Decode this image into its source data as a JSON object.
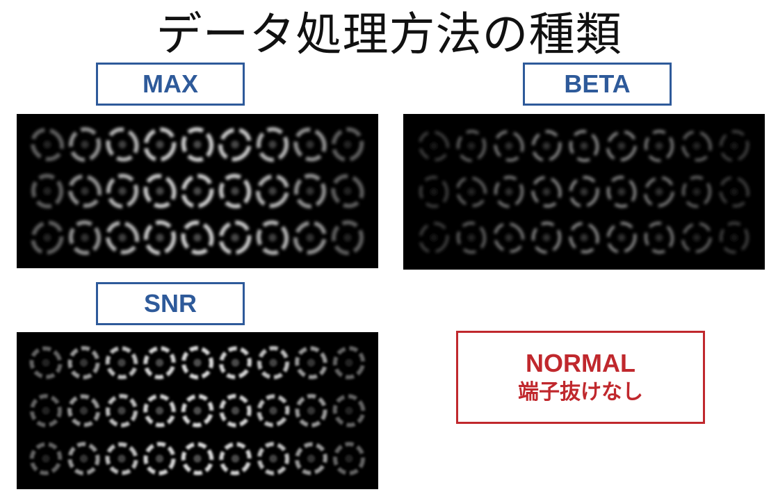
{
  "title": "データ処理方法の種類",
  "panels": {
    "max": {
      "label": "MAX"
    },
    "beta": {
      "label": "BETA"
    },
    "snr": {
      "label": "SNR"
    }
  },
  "normal": {
    "label": "NORMAL",
    "sublabel": "端子抜けなし"
  },
  "colors": {
    "label_blue": "#2e5a9a",
    "label_red": "#c0282d",
    "panel_bg": "#000000"
  }
}
